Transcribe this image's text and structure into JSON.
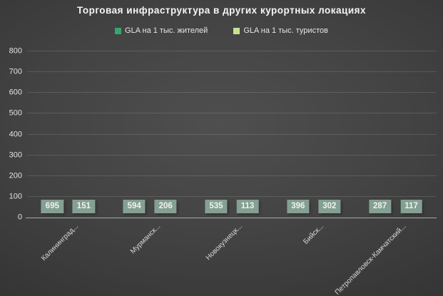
{
  "chart_data": {
    "type": "bar",
    "title": "Торговая инфраструктура в других курортных локациях",
    "categories": [
      "Калининград...",
      "Мурманск...",
      "Новокузнецк...",
      "Бийск...",
      "Петропавловск-Камчатский..."
    ],
    "series": [
      {
        "name": "GLA на 1 тыс. жителей",
        "color": "#36a56e",
        "values": [
          695,
          594,
          535,
          396,
          287
        ]
      },
      {
        "name": "GLA на 1 тыс. туристов",
        "color": "#c6e18f",
        "values": [
          151,
          206,
          113,
          302,
          117
        ]
      }
    ],
    "ylim": [
      0,
      800
    ],
    "yticks": [
      0,
      100,
      200,
      300,
      400,
      500,
      600,
      700,
      800
    ],
    "grid": true,
    "legend_position": "top",
    "data_labels": true,
    "data_label_bg": "#84a092",
    "data_label_color": "#f0f2f0",
    "background_center": "#4f4f4f",
    "background_edge": "#242424"
  }
}
